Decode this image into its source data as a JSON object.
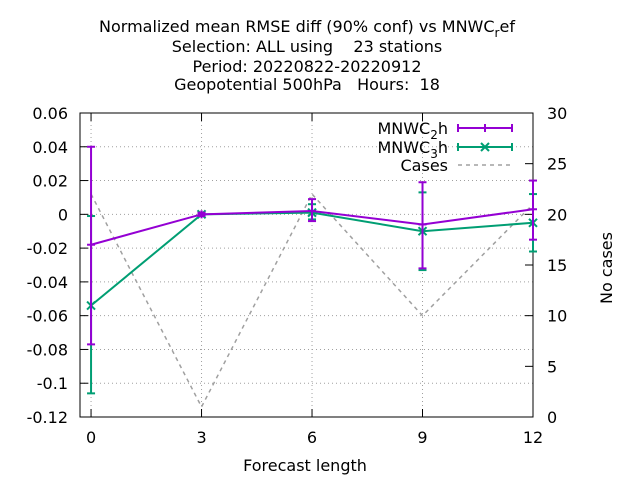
{
  "chart_data": {
    "type": "line",
    "title_lines": [
      "Normalized mean RMSE diff (90% conf) vs MNWC_ref",
      "Selection: ALL using    23 stations",
      "Period: 20220822-20220912",
      "Geopotential 500hPa   Hours:  18"
    ],
    "xlabel": "Forecast length",
    "ylabel_right": "No cases",
    "x": [
      0,
      3,
      6,
      9,
      12
    ],
    "xlim": [
      -0.3,
      12
    ],
    "ylim": [
      -0.12,
      0.06
    ],
    "y2lim": [
      0,
      30
    ],
    "x_ticks": [
      0,
      3,
      6,
      9,
      12
    ],
    "y_ticks": [
      -0.12,
      -0.1,
      -0.08,
      -0.06,
      -0.04,
      -0.02,
      0,
      0.02,
      0.04,
      0.06
    ],
    "y_tick_labels": [
      "-0.12",
      "-0.1",
      "-0.08",
      "-0.06",
      "-0.04",
      "-0.02",
      "0",
      "0.02",
      "0.04",
      "0.06"
    ],
    "y2_ticks": [
      0,
      5,
      10,
      15,
      20,
      25,
      30
    ],
    "y2_tick_labels": [
      "0",
      "5",
      "10",
      "15",
      "20",
      "25",
      "30"
    ],
    "grid": true,
    "legend_position": "top-right",
    "series": [
      {
        "name": "MNWC_2h",
        "color": "#9400d3",
        "marker": "plus",
        "y": [
          -0.018,
          0.0,
          0.002,
          -0.006,
          0.003
        ],
        "err_low": [
          -0.077,
          -0.001,
          -0.004,
          -0.032,
          -0.015
        ],
        "err_high": [
          0.04,
          0.001,
          0.009,
          0.019,
          0.02
        ]
      },
      {
        "name": "MNWC_3h",
        "color": "#009e73",
        "marker": "cross",
        "y": [
          -0.054,
          0.0,
          0.001,
          -0.01,
          -0.005
        ],
        "err_low": [
          -0.106,
          -0.001,
          -0.003,
          -0.033,
          -0.022
        ],
        "err_high": [
          -0.001,
          0.001,
          0.006,
          0.013,
          0.012
        ]
      },
      {
        "name": "Cases",
        "color": "#a0a0a0",
        "dashed": true,
        "axis": "y2",
        "y": [
          22,
          1,
          22,
          10,
          21
        ]
      }
    ]
  }
}
